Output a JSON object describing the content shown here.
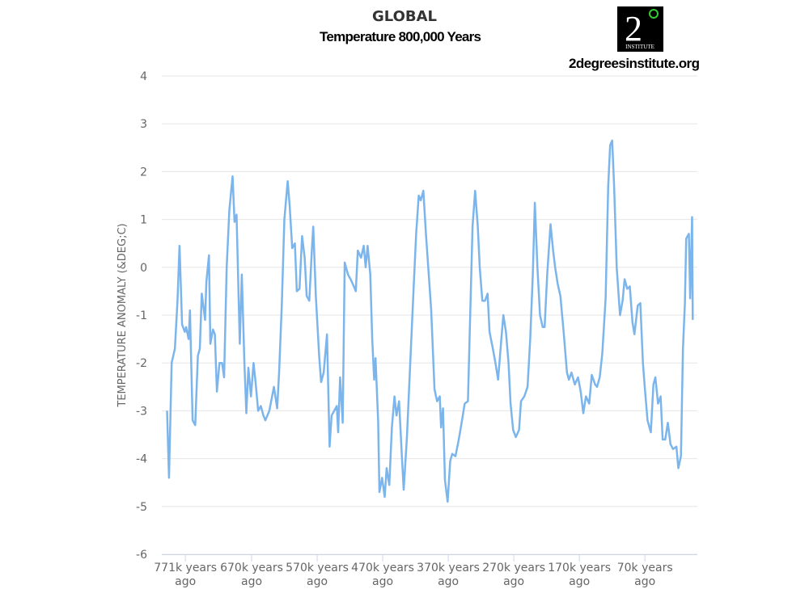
{
  "chart_data": {
    "type": "line",
    "title": "GLOBAL",
    "subtitle": "Temperature 800,000 Years",
    "y_label": "TEMPERATURE ANOMALY (&DEG;C)",
    "color": "#7cb5ec",
    "x": [
      799,
      796,
      792,
      787,
      783,
      780,
      776,
      772,
      770,
      766,
      764,
      760,
      756,
      752,
      749,
      746,
      741,
      739,
      735,
      733,
      729,
      726,
      723,
      719,
      715,
      712,
      708,
      704,
      699,
      696,
      693,
      688,
      685,
      681,
      678,
      675,
      671,
      667,
      664,
      660,
      656,
      652,
      649,
      643,
      636,
      631,
      628,
      624,
      620,
      615,
      612,
      608,
      604,
      601,
      597,
      593,
      589,
      586,
      582,
      578,
      576,
      572,
      567,
      564,
      560,
      555,
      551,
      548,
      544,
      540,
      538,
      535,
      531,
      528,
      523,
      519,
      514,
      511,
      508,
      503,
      499,
      496,
      493,
      489,
      486,
      483,
      481,
      477,
      475,
      471,
      467,
      464,
      460,
      456,
      452,
      449,
      445,
      441,
      438,
      433,
      428,
      423,
      419,
      415,
      412,
      408,
      404,
      399,
      396,
      391,
      387,
      383,
      381,
      378,
      375,
      371,
      367,
      364,
      359,
      354,
      349,
      345,
      340,
      336,
      333,
      329,
      325,
      322,
      318,
      314,
      310,
      307,
      302,
      298,
      294,
      289,
      286,
      282,
      278,
      275,
      271,
      267,
      262,
      259,
      254,
      249,
      245,
      241,
      238,
      234,
      230,
      226,
      223,
      219,
      214,
      210,
      207,
      203,
      199,
      194,
      189,
      186,
      182,
      177,
      172,
      168,
      164,
      160,
      155,
      151,
      146,
      143,
      139,
      135,
      130,
      126,
      123,
      120,
      117,
      113,
      108,
      104,
      101,
      97,
      93,
      89,
      86,
      81,
      77,
      73,
      70,
      66,
      61,
      57,
      54,
      50,
      46,
      43,
      39,
      35,
      31,
      27,
      22,
      19,
      15,
      12,
      9,
      7,
      3,
      1,
      -2,
      -3
    ],
    "values": [
      -3.0,
      -4.4,
      -2.0,
      -1.7,
      -0.7,
      0.45,
      -1.2,
      -1.35,
      -1.25,
      -1.5,
      -0.9,
      -3.2,
      -3.3,
      -1.85,
      -1.7,
      -0.55,
      -1.1,
      -0.3,
      0.25,
      -1.6,
      -1.3,
      -1.4,
      -2.6,
      -2.0,
      -2.0,
      -2.3,
      0.0,
      1.2,
      1.9,
      0.95,
      1.1,
      -1.6,
      -0.15,
      -2.0,
      -3.05,
      -2.1,
      -2.7,
      -2.0,
      -2.4,
      -3.0,
      -2.9,
      -3.1,
      -3.2,
      -3.0,
      -2.5,
      -2.95,
      -2.2,
      -0.8,
      1.0,
      1.8,
      1.3,
      0.4,
      0.5,
      -0.5,
      -0.45,
      0.65,
      0.2,
      -0.6,
      -0.7,
      0.4,
      0.85,
      -0.6,
      -1.85,
      -2.4,
      -2.2,
      -1.4,
      -3.75,
      -3.1,
      -3.0,
      -2.9,
      -3.45,
      -2.3,
      -3.25,
      0.1,
      -0.15,
      -0.25,
      -0.4,
      -0.5,
      0.35,
      0.2,
      0.45,
      0.0,
      0.45,
      -0.15,
      -1.5,
      -2.35,
      -1.9,
      -3.2,
      -4.7,
      -4.4,
      -4.8,
      -4.2,
      -4.55,
      -3.35,
      -2.7,
      -3.1,
      -2.8,
      -3.9,
      -4.65,
      -3.55,
      -2.0,
      -0.5,
      0.7,
      1.5,
      1.4,
      1.6,
      0.7,
      -0.3,
      -0.9,
      -2.55,
      -2.8,
      -2.7,
      -3.35,
      -2.95,
      -4.45,
      -4.9,
      -4.05,
      -3.9,
      -3.95,
      -3.6,
      -3.2,
      -2.85,
      -2.8,
      -0.75,
      0.85,
      1.6,
      0.85,
      0.0,
      -0.7,
      -0.7,
      -0.55,
      -1.35,
      -1.7,
      -2.0,
      -2.35,
      -1.5,
      -1.0,
      -1.35,
      -2.0,
      -2.85,
      -3.4,
      -3.55,
      -3.4,
      -2.8,
      -2.7,
      -2.5,
      -1.5,
      -0.15,
      1.35,
      0.0,
      -1.0,
      -1.25,
      -1.25,
      -0.15,
      0.9,
      0.35,
      0.0,
      -0.35,
      -0.6,
      -1.35,
      -2.2,
      -2.35,
      -2.2,
      -2.45,
      -2.3,
      -2.6,
      -3.05,
      -2.7,
      -2.85,
      -2.25,
      -2.45,
      -2.5,
      -2.3,
      -1.8,
      -0.65,
      1.7,
      2.55,
      2.65,
      1.7,
      0.0,
      -1.0,
      -0.7,
      -0.25,
      -0.45,
      -0.4,
      -1.15,
      -1.4,
      -0.8,
      -0.75,
      -2.0,
      -2.55,
      -3.2,
      -3.45,
      -2.45,
      -2.3,
      -2.85,
      -2.7,
      -3.6,
      -3.6,
      -3.25,
      -3.7,
      -3.8,
      -3.75,
      -4.2,
      -3.95,
      -1.7,
      -0.75,
      0.6,
      0.7,
      -0.65,
      1.05,
      -1.1
    ],
    "xlim": [
      807,
      -10
    ],
    "xticks": [
      {
        "value": 771,
        "label": "771k years ago"
      },
      {
        "value": 670,
        "label": "670k years ago"
      },
      {
        "value": 570,
        "label": "570k years ago"
      },
      {
        "value": 470,
        "label": "470k years ago"
      },
      {
        "value": 370,
        "label": "370k years ago"
      },
      {
        "value": 270,
        "label": "270k years ago"
      },
      {
        "value": 170,
        "label": "170k years ago"
      },
      {
        "value": 70,
        "label": "70k years ago"
      }
    ],
    "ylim": [
      -6,
      4
    ],
    "yticks": [
      -6,
      -5,
      -4,
      -3,
      -2,
      -1,
      0,
      1,
      2,
      3,
      4
    ],
    "grid": true
  },
  "logo": {
    "numeral": "2",
    "caption": "INSTITUTE",
    "site": "2degreesinstitute.org"
  }
}
